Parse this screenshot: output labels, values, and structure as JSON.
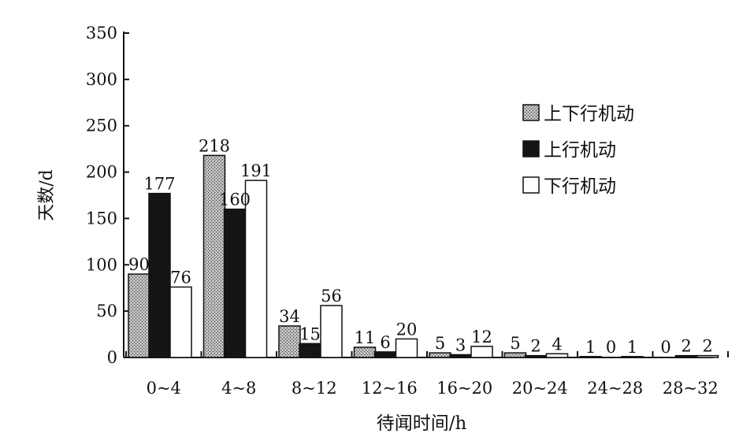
{
  "chart_data": {
    "type": "bar",
    "xlabel": "待闻时间/h",
    "ylabel": "天数/d",
    "ylim": [
      0,
      350
    ],
    "yticks": [
      0,
      50,
      100,
      150,
      200,
      250,
      300,
      350
    ],
    "categories": [
      "0~4",
      "4~8",
      "8~12",
      "12~16",
      "16~20",
      "20~24",
      "24~28",
      "28~32"
    ],
    "series": [
      {
        "name": "上下行机动",
        "values": [
          90,
          218,
          34,
          11,
          5,
          5,
          1,
          0
        ],
        "labels": [
          "90",
          "218",
          "34",
          "11",
          "5",
          "5",
          "1",
          "0"
        ],
        "color": "#9a9a9a",
        "pattern": "stipple"
      },
      {
        "name": "上行机动",
        "values": [
          177,
          160,
          15,
          6,
          3,
          2,
          0,
          2
        ],
        "labels": [
          "177",
          "160",
          "15",
          "6",
          "3",
          "2",
          "0",
          "2"
        ],
        "color": "#141414"
      },
      {
        "name": "下行机动",
        "values": [
          76,
          191,
          56,
          20,
          12,
          4,
          1,
          2
        ],
        "labels": [
          "76",
          "191",
          "56",
          "20",
          "12",
          "4",
          "1",
          "2"
        ],
        "color": "#ffffff"
      }
    ],
    "legend": {
      "position": "top-right"
    },
    "grid": false
  }
}
